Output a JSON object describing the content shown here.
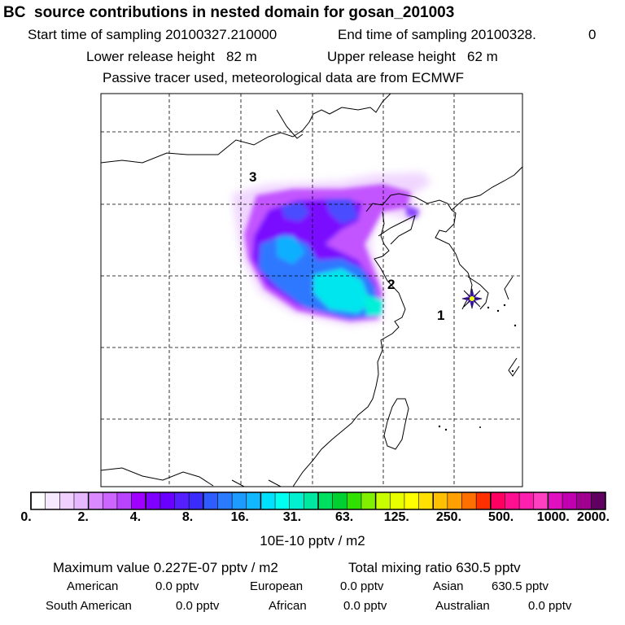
{
  "header": {
    "title": "BC  source contributions in nested domain for gosan_201003",
    "start_label": "Start time of sampling 20100327.210000",
    "end_label": "End time of sampling 20100328.",
    "end_suffix": "0",
    "lower_release": "Lower release height   82 m",
    "upper_release": "Upper release height   62 m",
    "tracer_note": "Passive tracer used, meteorological data are from ECMWF"
  },
  "map": {
    "markers": [
      {
        "label": "1"
      },
      {
        "label": "2"
      },
      {
        "label": "3"
      }
    ],
    "receptor_icon": "receptor-star-icon",
    "colors": {
      "land_border": "#000000",
      "grid": "#000000",
      "receptor_star": "#1e1e9a",
      "receptor_center": "#f0ff00"
    }
  },
  "colorbar": {
    "tick_labels": [
      "0.",
      "2.",
      "4.",
      "8.",
      "16.",
      "31.",
      "63.",
      "125.",
      "250.",
      "500.",
      "1000.",
      "2000."
    ],
    "unit": "10E-10 pptv / m2",
    "colors": [
      "#ffffff",
      "#f6e8ff",
      "#efd0ff",
      "#e6b8ff",
      "#d98aff",
      "#cc66ff",
      "#b844ff",
      "#a000ff",
      "#8000ff",
      "#6a00ff",
      "#5520ff",
      "#3a2cff",
      "#2f5cff",
      "#2a7bff",
      "#1e9bff",
      "#10b8ff",
      "#00e0ff",
      "#00ffee",
      "#00f0d0",
      "#00e8a0",
      "#00e060",
      "#00d030",
      "#30e000",
      "#80f000",
      "#c8ff00",
      "#e8ff00",
      "#ffff00",
      "#ffe000",
      "#ffc000",
      "#ffa000",
      "#ff7000",
      "#ff3000",
      "#ff0060",
      "#ff1090",
      "#ff20b0",
      "#ff40c0",
      "#e010c0",
      "#c000b0",
      "#a00090",
      "#600060"
    ]
  },
  "stats": {
    "maximum": "Maximum value  0.227E-07 pptv / m2",
    "total": "Total mixing ratio     630.5 pptv",
    "regions": [
      {
        "name": "American",
        "value": "0.0 pptv"
      },
      {
        "name": "European",
        "value": "0.0 pptv"
      },
      {
        "name": "Asian",
        "value": "630.5 pptv"
      },
      {
        "name": "South American",
        "value": "0.0 pptv"
      },
      {
        "name": "African",
        "value": "0.0 pptv"
      },
      {
        "name": "Australian",
        "value": "0.0 pptv"
      }
    ]
  }
}
